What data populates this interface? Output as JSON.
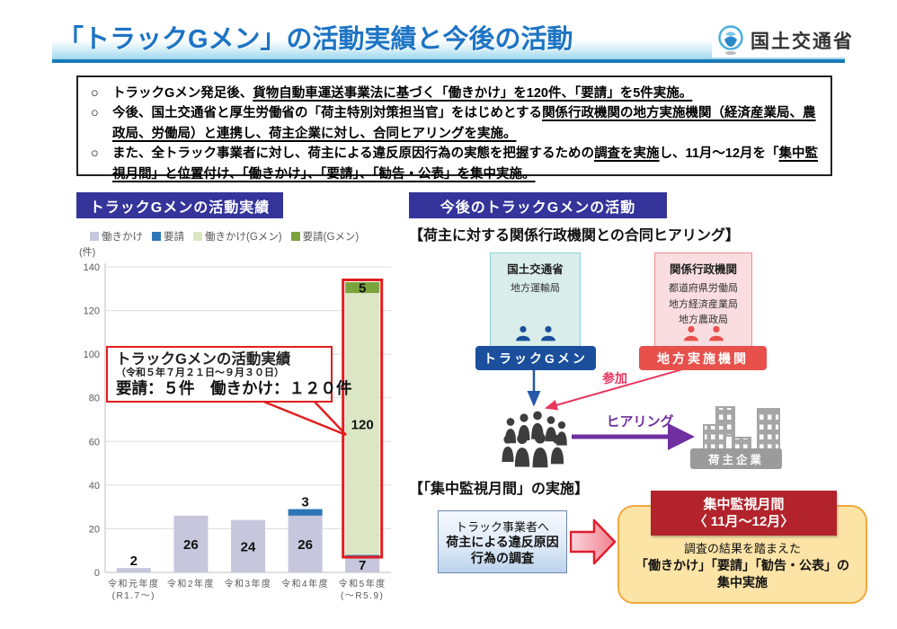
{
  "header": {
    "title": "「トラックGメン」の活動実績と今後の活動",
    "agency": "国土交通省"
  },
  "summary_box": {
    "marker": "○",
    "bullets": [
      [
        {
          "t": "トラックGメン発足後、",
          "u": false
        },
        {
          "t": "貨物自動車運送事業法に基づく「働きかけ」を120件、「要請」を5件実施。",
          "u": true
        }
      ],
      [
        {
          "t": "今後、国土交通省と厚生労働省の「荷主特別対策担当官」をはじめとする",
          "u": false
        },
        {
          "t": "関係行政機関の地方実施機関（経済産業局、農政局、労働局）と連携し、荷主企業に対し、合同ヒアリングを実施。",
          "u": true
        }
      ],
      [
        {
          "t": "また、全トラック事業者に対し、荷主による違反原因行為の実態を把握するための",
          "u": false
        },
        {
          "t": "調査を実施",
          "u": true
        },
        {
          "t": "し、11月～12月を「",
          "u": false
        },
        {
          "t": "集中監視月間」と位置付け、「働きかけ」、「要請」、「勧告・公表」を集中実施。",
          "u": true
        }
      ]
    ]
  },
  "left_section": {
    "badge": "トラックGメンの活動実績"
  },
  "chart_data": {
    "type": "bar",
    "stacked": true,
    "unit_label": "(件)",
    "categories": [
      "令和元年度\n(R1.7～)",
      "令和2年度",
      "令和3年度",
      "令和4年度",
      "令和5年度\n(～R5.9)"
    ],
    "series": [
      {
        "name": "働きかけ",
        "color": "#c6c6dd",
        "values": [
          2,
          26,
          24,
          26,
          7
        ]
      },
      {
        "name": "要請",
        "color": "#2e75b6",
        "values": [
          0,
          0,
          0,
          3,
          1
        ]
      },
      {
        "name": "働きかけ(Gメン)",
        "color": "#dbe7c4",
        "values": [
          0,
          0,
          0,
          0,
          120
        ]
      },
      {
        "name": "要請(Gメン)",
        "color": "#7ba33d",
        "values": [
          0,
          0,
          0,
          0,
          5
        ]
      }
    ],
    "ylim": [
      0,
      140
    ],
    "ytick_step": 20,
    "grid": true,
    "legend_position": "top",
    "highlight": {
      "category_index": 4,
      "from_value": 8,
      "to_value": 133,
      "color": "#e01f1f"
    }
  },
  "annotation": {
    "line1": "トラックGメンの活動実績",
    "line2": "（令和５年７月２１日～９月３０日）",
    "line3": "要請：５件　働きかけ：１２０件"
  },
  "right_section": {
    "badge": "今後のトラックGメンの活動",
    "hearing_title": "【荷主に対する関係行政機関との合同ヒアリング】",
    "mlit_box": {
      "title": "国土交通省",
      "sub": "地方運輸局",
      "label": "トラックGメン"
    },
    "related_box": {
      "title": "関係行政機関",
      "sub1": "都道府県労働局",
      "sub2": "地方経済産業局",
      "sub3": "地方農政局",
      "label": "地方実施機関"
    },
    "participate_label": "参加",
    "hearing_label": "ヒアリング",
    "shipper_label": "荷主企業"
  },
  "monitoring": {
    "section_title": "【「集中監視月間」の実施】",
    "survey_box": {
      "line1": "トラック事業者へ",
      "line2": "荷主による違反原因",
      "line3": "行為の調査"
    },
    "badge": {
      "line1": "集中監視月間",
      "line2": "〈 11月～12月〉"
    },
    "body": {
      "line1": "調査の結果を踏まえた",
      "line2": "「働きかけ」「要請」「勧告・公表」の",
      "line3": "集中実施"
    }
  },
  "colors": {
    "title_blue": "#1d74c4",
    "badge_indigo": "#34349b",
    "highlight_red": "#e01f1f",
    "gmen_pill_blue": "#1b4f9c",
    "regional_pill_red": "#e8504c",
    "participate_red": "#e8365e",
    "hearing_purple": "#7030a0",
    "monitor_badge_red": "#b2232b",
    "monitor_box_orange": "#fce3a6"
  }
}
